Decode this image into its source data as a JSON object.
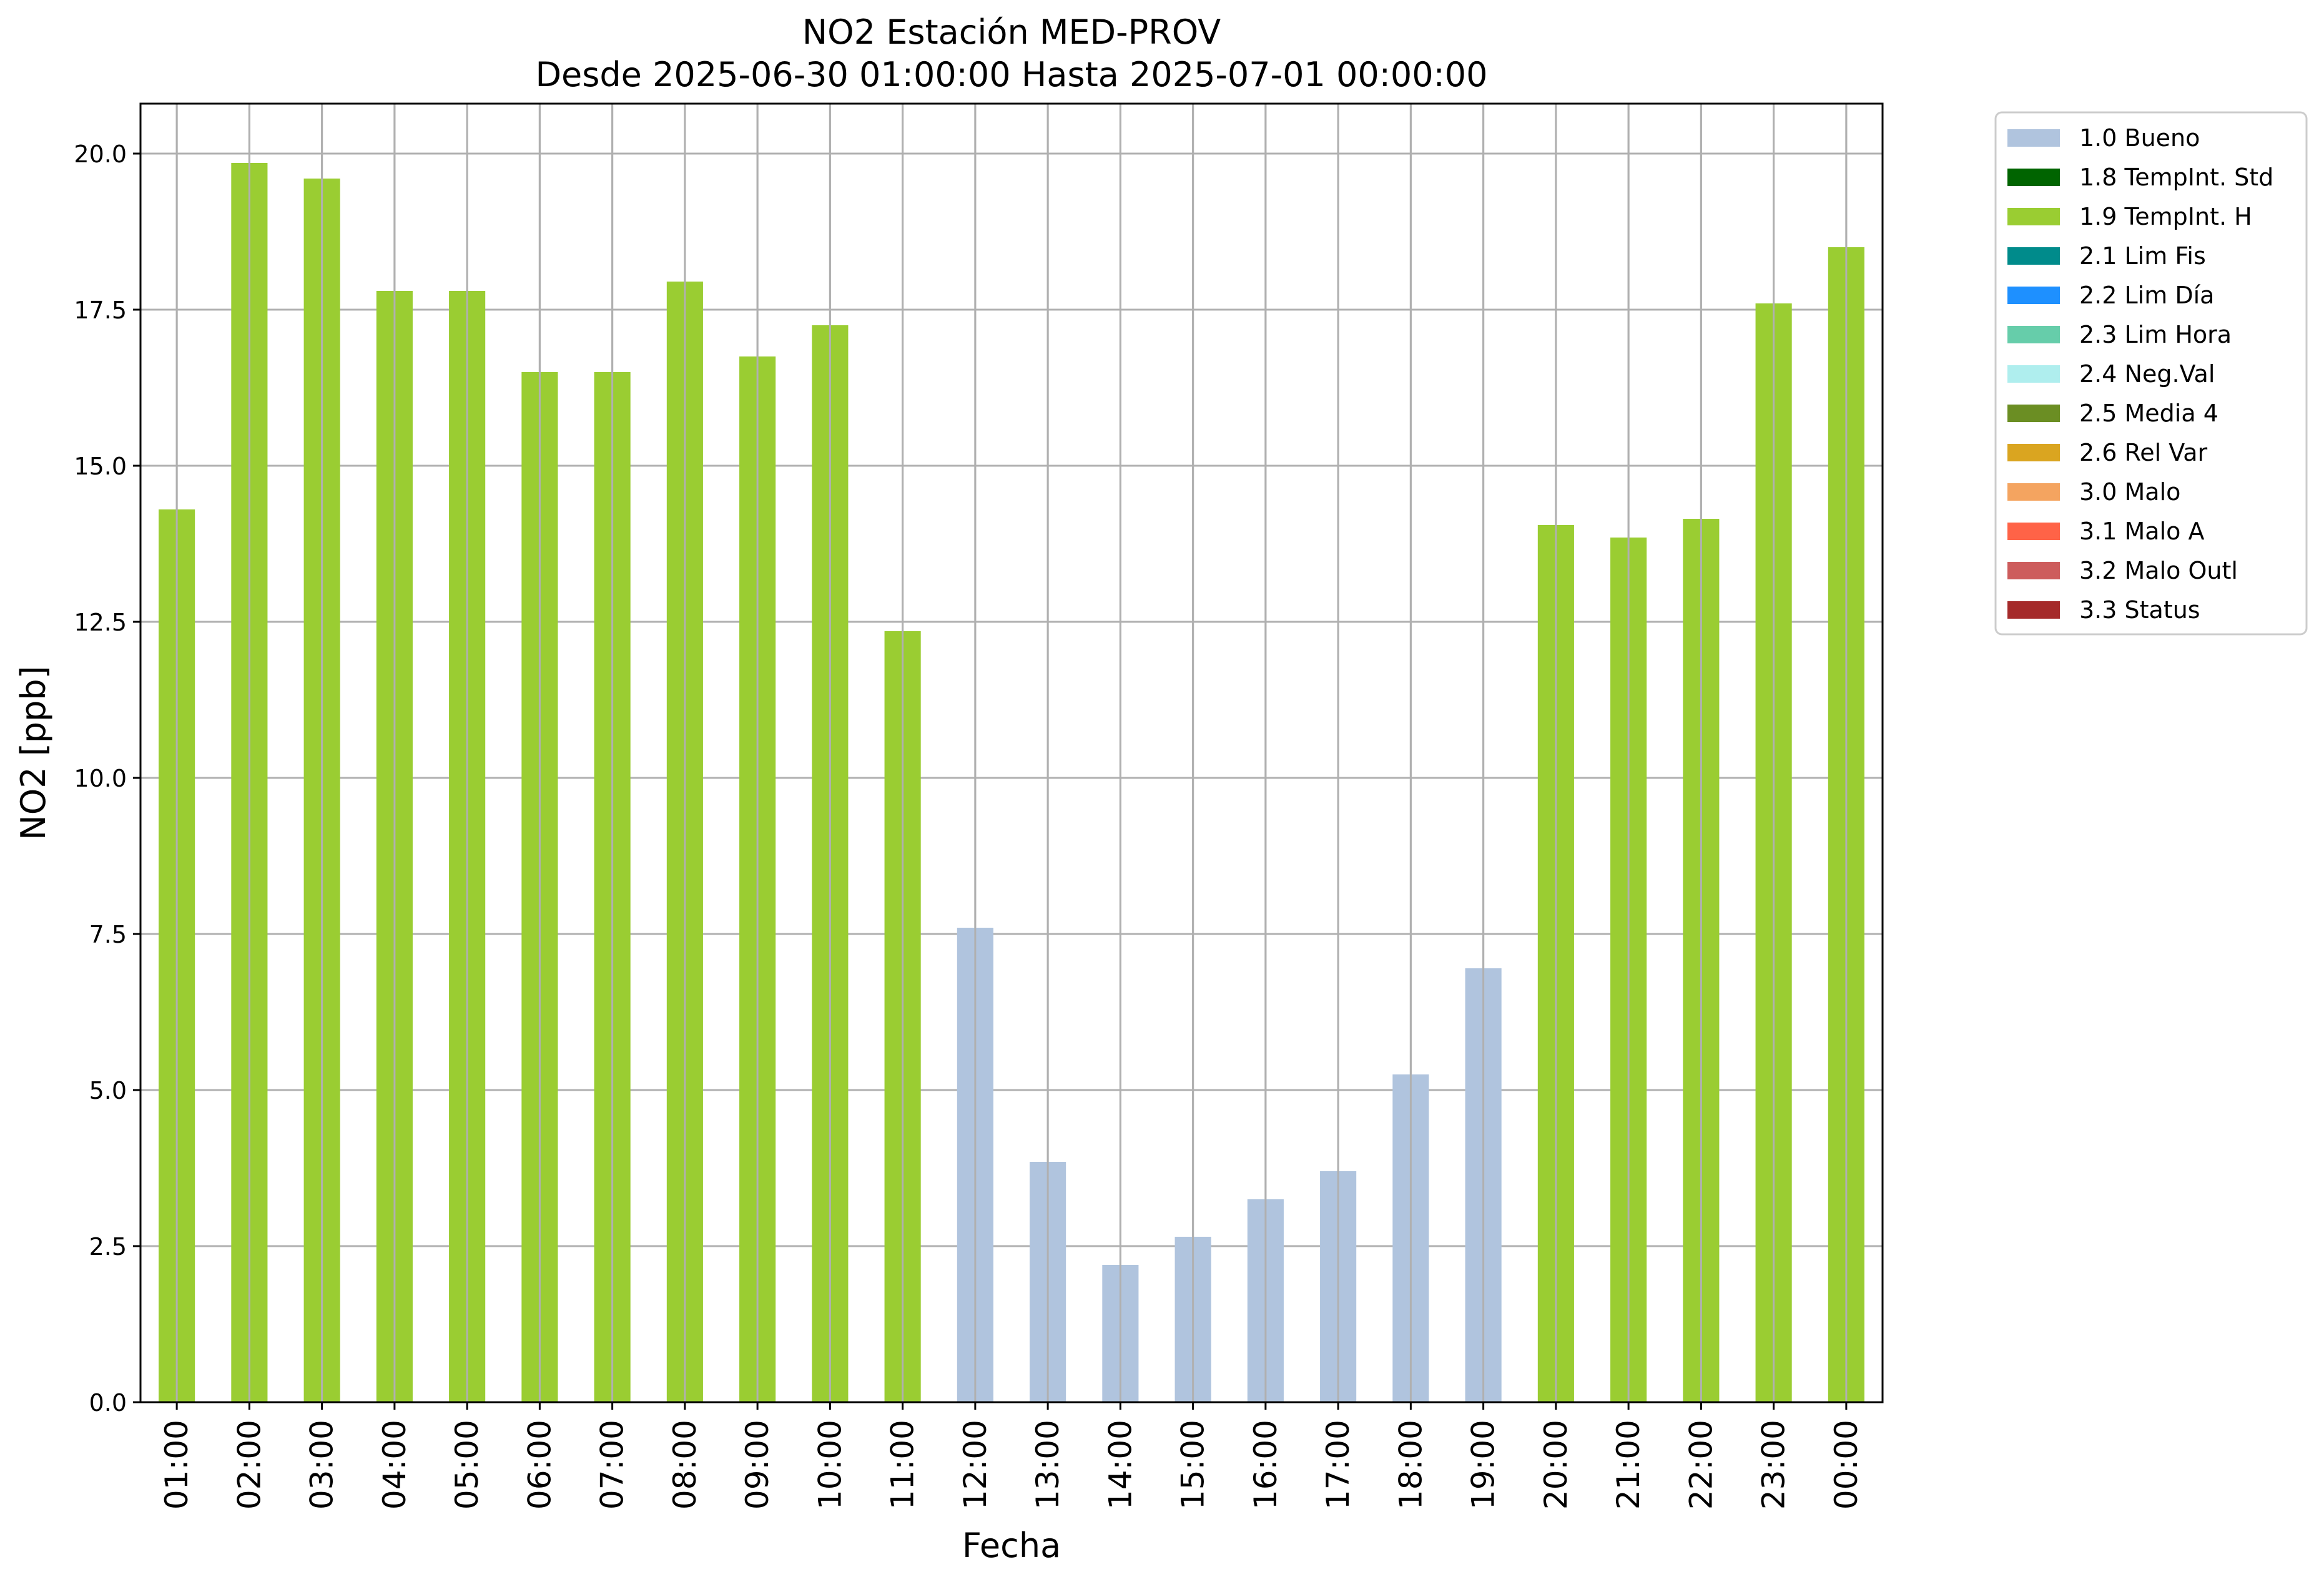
{
  "chart_data": {
    "type": "bar",
    "title": "NO2 Estación MED-PROV",
    "subtitle": "Desde 2025-06-30 01:00:00 Hasta 2025-07-01 00:00:00",
    "xlabel": "Fecha",
    "ylabel": "NO2 [ppb]",
    "ylim": [
      0,
      20.8
    ],
    "yticks": [
      "0.0",
      "2.5",
      "5.0",
      "7.5",
      "10.0",
      "12.5",
      "15.0",
      "17.5",
      "20.0"
    ],
    "grid": true,
    "legend_position": "outside-top-right",
    "categories": [
      "01:00",
      "02:00",
      "03:00",
      "04:00",
      "05:00",
      "06:00",
      "07:00",
      "08:00",
      "09:00",
      "10:00",
      "11:00",
      "12:00",
      "13:00",
      "14:00",
      "15:00",
      "16:00",
      "17:00",
      "18:00",
      "19:00",
      "20:00",
      "21:00",
      "22:00",
      "23:00",
      "00:00"
    ],
    "values": [
      14.3,
      19.85,
      19.6,
      17.8,
      17.8,
      16.5,
      16.5,
      17.95,
      16.75,
      17.25,
      12.35,
      7.6,
      3.85,
      2.2,
      2.65,
      3.25,
      3.7,
      5.25,
      6.95,
      14.05,
      13.85,
      14.15,
      17.6,
      18.5
    ],
    "flags": [
      "1.9 TempInt. H",
      "1.9 TempInt. H",
      "1.9 TempInt. H",
      "1.9 TempInt. H",
      "1.9 TempInt. H",
      "1.9 TempInt. H",
      "1.9 TempInt. H",
      "1.9 TempInt. H",
      "1.9 TempInt. H",
      "1.9 TempInt. H",
      "1.9 TempInt. H",
      "1.0 Bueno",
      "1.0 Bueno",
      "1.0 Bueno",
      "1.0 Bueno",
      "1.0 Bueno",
      "1.0 Bueno",
      "1.0 Bueno",
      "1.0 Bueno",
      "1.9 TempInt. H",
      "1.9 TempInt. H",
      "1.9 TempInt. H",
      "1.9 TempInt. H",
      "1.9 TempInt. H"
    ],
    "legend": [
      {
        "label": "1.0 Bueno",
        "color": "#b0c4de"
      },
      {
        "label": "1.8 TempInt. Std",
        "color": "#006400"
      },
      {
        "label": "1.9 TempInt. H",
        "color": "#9acd32"
      },
      {
        "label": "2.1 Lim Fis",
        "color": "#008b8b"
      },
      {
        "label": "2.2 Lim Día",
        "color": "#1e90ff"
      },
      {
        "label": "2.3 Lim Hora",
        "color": "#66cdaa"
      },
      {
        "label": "2.4 Neg.Val",
        "color": "#afeeee"
      },
      {
        "label": "2.5 Media 4",
        "color": "#6b8e23"
      },
      {
        "label": "2.6 Rel Var",
        "color": "#daa520"
      },
      {
        "label": "3.0 Malo",
        "color": "#f4a460"
      },
      {
        "label": "3.1 Malo A",
        "color": "#ff6347"
      },
      {
        "label": "3.2 Malo Outl",
        "color": "#cd5c5c"
      },
      {
        "label": "3.3 Status",
        "color": "#a52a2a"
      }
    ]
  }
}
